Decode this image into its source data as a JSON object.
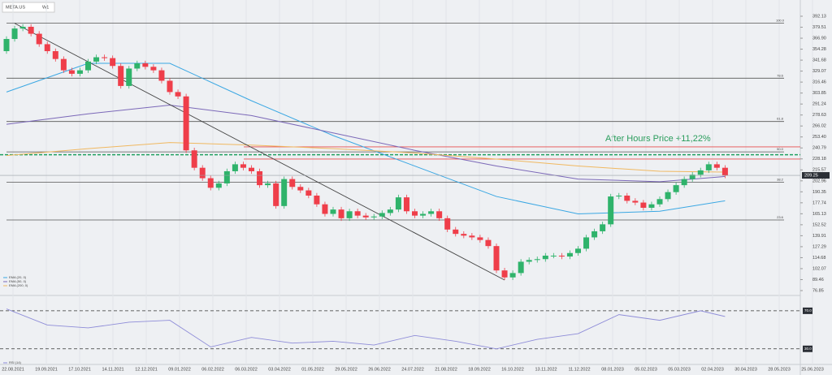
{
  "header": {
    "symbol": "META.US",
    "timeframe": "W1"
  },
  "chart_data": [
    {
      "type": "candlestick",
      "annotation": "After Hours Price +11,22%",
      "categories": [
        "22.08.2021",
        "19.09.2021",
        "17.10.2021",
        "14.11.2021",
        "12.12.2021",
        "09.01.2022",
        "06.02.2022",
        "06.03.2022",
        "03.04.2022",
        "01.05.2022",
        "29.05.2022",
        "26.06.2022",
        "24.07.2022",
        "21.08.2022",
        "18.09.2022",
        "16.10.2022",
        "13.11.2022",
        "11.12.2022",
        "08.01.2023",
        "05.02.2023",
        "05.03.2023",
        "02.04.2023",
        "30.04.2023",
        "28.05.2023",
        "25.06.2023"
      ],
      "open": [
        352,
        366,
        378,
        380,
        372,
        360,
        352,
        343,
        330,
        326,
        330,
        340,
        345,
        344,
        335,
        312,
        332,
        338,
        334,
        330,
        318,
        305,
        300,
        238,
        218,
        206,
        195,
        200,
        214,
        222,
        218,
        214,
        198,
        200,
        174,
        205,
        196,
        192,
        186,
        176,
        165,
        170,
        160,
        168,
        163,
        161,
        162,
        166,
        170,
        184,
        168,
        163,
        165,
        168,
        160,
        147,
        142,
        140,
        138,
        135,
        128,
        100,
        92,
        97,
        110,
        112,
        113,
        117,
        117,
        116,
        120,
        125,
        138,
        145,
        153,
        185,
        186,
        180,
        178,
        172,
        176,
        182,
        190,
        198,
        205,
        210,
        215,
        222,
        218
      ],
      "high": [
        369,
        381,
        383,
        383,
        375,
        363,
        355,
        346,
        333,
        333,
        343,
        348,
        348,
        347,
        338,
        335,
        341,
        341,
        337,
        333,
        321,
        308,
        303,
        241,
        221,
        209,
        203,
        217,
        225,
        225,
        221,
        217,
        203,
        203,
        208,
        208,
        199,
        195,
        189,
        179,
        173,
        173,
        171,
        171,
        166,
        165,
        169,
        173,
        187,
        187,
        171,
        168,
        171,
        171,
        163,
        150,
        145,
        143,
        141,
        138,
        131,
        103,
        100,
        113,
        115,
        116,
        120,
        120,
        120,
        123,
        128,
        141,
        148,
        156,
        188,
        189,
        189,
        183,
        181,
        179,
        185,
        193,
        201,
        208,
        213,
        218,
        225,
        225,
        221
      ],
      "low": [
        349,
        363,
        375,
        369,
        357,
        349,
        340,
        327,
        323,
        323,
        327,
        337,
        341,
        332,
        309,
        309,
        329,
        331,
        327,
        315,
        302,
        297,
        235,
        215,
        203,
        192,
        192,
        197,
        211,
        215,
        211,
        195,
        195,
        171,
        171,
        193,
        189,
        183,
        173,
        162,
        162,
        157,
        157,
        160,
        158,
        158,
        159,
        163,
        167,
        165,
        160,
        160,
        162,
        157,
        144,
        139,
        137,
        135,
        132,
        125,
        97,
        89,
        89,
        94,
        107,
        109,
        110,
        114,
        113,
        113,
        117,
        122,
        135,
        142,
        150,
        182,
        177,
        175,
        169,
        169,
        173,
        179,
        187,
        195,
        202,
        207,
        212,
        215,
        206
      ],
      "close": [
        366,
        378,
        380,
        372,
        360,
        352,
        343,
        330,
        326,
        330,
        340,
        345,
        344,
        335,
        312,
        332,
        338,
        334,
        330,
        318,
        305,
        300,
        238,
        218,
        206,
        195,
        200,
        214,
        222,
        218,
        214,
        198,
        200,
        174,
        205,
        196,
        192,
        186,
        176,
        165,
        170,
        160,
        168,
        163,
        161,
        162,
        166,
        170,
        184,
        168,
        163,
        165,
        168,
        160,
        147,
        142,
        140,
        138,
        135,
        128,
        100,
        92,
        97,
        110,
        112,
        113,
        117,
        117,
        116,
        120,
        125,
        138,
        145,
        153,
        185,
        186,
        180,
        178,
        172,
        176,
        182,
        190,
        198,
        205,
        210,
        215,
        222,
        218,
        209
      ],
      "up_color": "#2fb36b",
      "down_color": "#ef3e4a",
      "indicators": [
        {
          "name": "EMA (20, 0)",
          "color": "#3aa7e3",
          "x": [
            0,
            10,
            20,
            30,
            40,
            50,
            60,
            70,
            80,
            88
          ],
          "values": [
            305,
            338,
            338,
            295,
            255,
            220,
            185,
            165,
            168,
            180
          ]
        },
        {
          "name": "EMA (50, 0)",
          "color": "#7b68b8",
          "x": [
            0,
            10,
            20,
            30,
            40,
            50,
            60,
            70,
            80,
            88
          ],
          "values": [
            268,
            280,
            290,
            278,
            258,
            238,
            220,
            205,
            202,
            208
          ]
        },
        {
          "name": "EMA (200, 0)",
          "color": "#f0b860",
          "x": [
            0,
            10,
            20,
            30,
            40,
            50,
            60,
            70,
            80,
            88
          ],
          "values": [
            232,
            240,
            247,
            244,
            240,
            235,
            228,
            220,
            214,
            213
          ]
        }
      ],
      "levels": [
        {
          "value": 384.33,
          "label": "100.0",
          "color": "#555555"
        },
        {
          "value": 320.93,
          "label": "78.6",
          "color": "#555555"
        },
        {
          "value": 271.16,
          "label": "61.8",
          "color": "#555555"
        },
        {
          "value": 236.21,
          "label": "50.0",
          "color": "#555555"
        },
        {
          "value": 201.25,
          "label": "38.2",
          "color": "#555555"
        },
        {
          "value": 158.0,
          "label": "23.6",
          "color": "#555555"
        }
      ],
      "lines": [
        {
          "value": 242,
          "color": "#e84c4c",
          "dashed": false
        },
        {
          "value": 228,
          "color": "#e84c4c",
          "dashed": false
        },
        {
          "value": 233,
          "color": "#1fa060",
          "dashed": true
        }
      ],
      "trendline": {
        "x": [
          1,
          61
        ],
        "values": [
          384,
          89
        ]
      },
      "last_price": 209.25,
      "ylim": [
        76.85,
        392.13
      ],
      "yticks": [
        392.13,
        379.51,
        {
          "value": 366.9,
          "label": "366.90"
        },
        354.28,
        341.68,
        329.07,
        316.46,
        303.85,
        291.24,
        278.63,
        266.02,
        {
          "value": 253.4,
          "label": "253.40"
        },
        240.79,
        228.18,
        215.57,
        202.96,
        190.35,
        177.74,
        165.13,
        152.52,
        139.91,
        127.29,
        114.68,
        102.07,
        89.46,
        76.85
      ]
    },
    {
      "type": "line",
      "name": "RSI (14)",
      "color": "#8e8cd8",
      "x": [
        0,
        5,
        10,
        15,
        20,
        25,
        30,
        35,
        40,
        45,
        50,
        55,
        60,
        65,
        70,
        75,
        80,
        85,
        88
      ],
      "values": [
        72,
        55,
        52,
        58,
        60,
        32,
        42,
        36,
        38,
        34,
        44,
        38,
        30,
        40,
        46,
        66,
        60,
        70,
        64
      ],
      "ylim": [
        17,
        81
      ],
      "yticks": [
        {
          "value": 70,
          "label": "70.0"
        },
        {
          "value": 30,
          "label": "30.0"
        }
      ]
    }
  ]
}
